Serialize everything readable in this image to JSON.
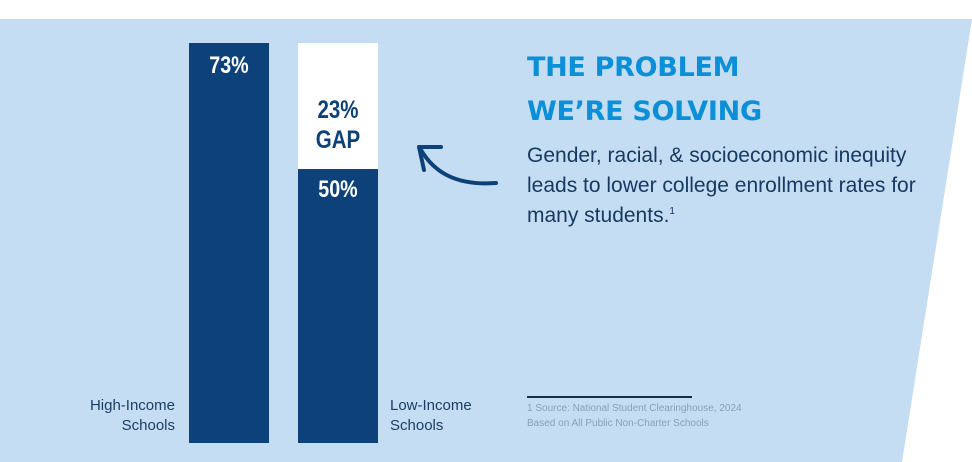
{
  "colors": {
    "panel": "#c5ddf2",
    "bar_fill": "#0c4279",
    "gap_fill": "#ffffff",
    "headline": "#0b8fd8",
    "body_text": "#163a63",
    "arrow": "#0c4279"
  },
  "headline": {
    "line1": "THE PROBLEM",
    "line2": "WE’RE SOLVING"
  },
  "body": {
    "text": "Gender, racial, &  socioeconomic inequity leads to lower college enrollment rates for many students.",
    "footnote_marker": "1"
  },
  "source": {
    "line1": "1 Source: National Student Clearinghouse, 2024",
    "line2": "Based on All Public Non-Charter Schools"
  },
  "chart_data": {
    "type": "bar",
    "categories": [
      "High-Income\nSchools",
      "Low-Income\nSchools"
    ],
    "values": [
      73,
      50
    ],
    "value_labels": [
      "73%",
      "50%"
    ],
    "gap": {
      "value": 23,
      "label_line1": "23%",
      "label_line2": "GAP"
    },
    "ylim": [
      0,
      73
    ],
    "title": "",
    "xlabel": "",
    "ylabel": "",
    "grid": false
  }
}
